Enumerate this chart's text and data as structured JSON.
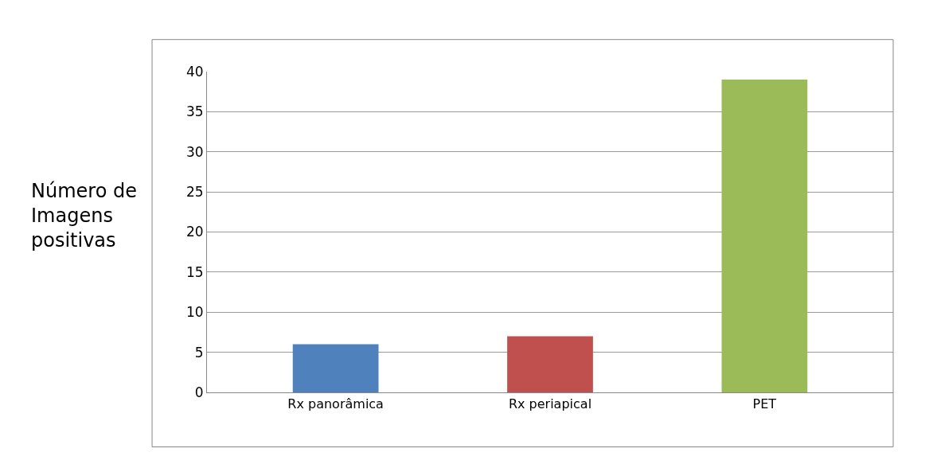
{
  "chart_data": {
    "type": "bar",
    "ylabel": "Número de Imagens positivas",
    "categories": [
      "Rx panorâmica",
      "Rx periapical",
      "PET"
    ],
    "values": [
      6,
      7,
      39
    ],
    "colors": [
      "#4f81bd",
      "#c0504d",
      "#9bbb59"
    ],
    "ylim": [
      0,
      40
    ],
    "yticks": [
      0,
      5,
      10,
      15,
      20,
      25,
      30,
      35,
      40
    ],
    "grid": "y",
    "legend": false
  }
}
